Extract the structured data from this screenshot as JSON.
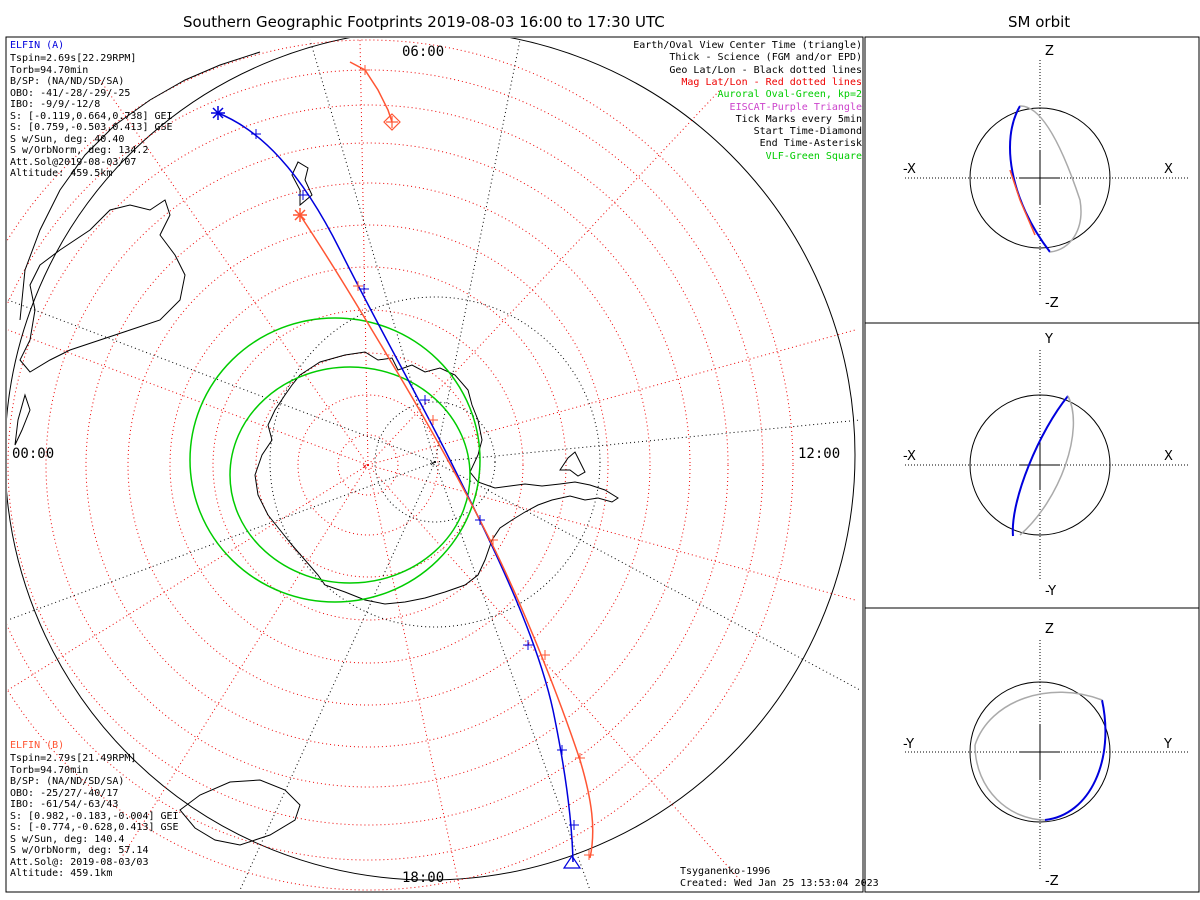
{
  "main_title": "Southern Geographic Footprints 2019-08-03 16:00 to 17:30 UTC",
  "orbit_title": "SM orbit",
  "mlt_labels": {
    "top": "06:00",
    "left": "00:00",
    "right": "12:00",
    "bottom": "18:00"
  },
  "elfin_a": {
    "name": "ELFIN (A)",
    "lines": [
      "Tspin=2.69s[22.29RPM]",
      "Torb=94.70min",
      "B/SP: (NA/ND/SD/SA)",
      "OBO: -41/-28/-29/-25",
      "IBO: -9/9/-12/8",
      "S: [-0.119,0.664,0.738] GEI",
      "S: [0.759,-0.503,0.413] GSE",
      "S w/Sun, deg: 40.40",
      "S w/OrbNorm, deg: 134.2",
      "Att.Sol@2019-08-03/07",
      "Altitude: 459.5km"
    ],
    "color": "#0000dd"
  },
  "elfin_b": {
    "name": "ELFIN (B)",
    "lines": [
      "Tspin=2.79s[21.49RPM]",
      "Torb=94.70min",
      "B/SP: (NA/ND/SD/SA)",
      "OBO: -25/27/-40/17",
      "IBO: -61/54/-63/43",
      "S: [0.982,-0.183,-0.004] GEI",
      "S: [-0.774,-0.628,0.413] GSE",
      "S w/Sun, deg: 140.4",
      "S w/OrbNorm, deg: 57.14",
      "Att.Sol@: 2019-08-03/03",
      "Altitude: 459.1km"
    ],
    "color": "#ff5533"
  },
  "legend": [
    {
      "text": "Earth/Oval View Center Time (triangle)",
      "color": "#000000"
    },
    {
      "text": "Thick - Science (FGM and/or EPD)",
      "color": "#000000"
    },
    {
      "text": "Geo Lat/Lon - Black dotted lines",
      "color": "#000000"
    },
    {
      "text": "Mag Lat/Lon - Red dotted lines",
      "color": "#ee0000"
    },
    {
      "text": "Auroral Oval-Green, kp=2",
      "color": "#00cc00"
    },
    {
      "text": "EISCAT-Purple Triangle",
      "color": "#cc44cc"
    },
    {
      "text": "Tick Marks every 5min",
      "color": "#000000"
    },
    {
      "text": "Start Time-Diamond",
      "color": "#000000"
    },
    {
      "text": "End Time-Asterisk",
      "color": "#000000"
    },
    {
      "text": "VLF-Green Square",
      "color": "#00cc00"
    }
  ],
  "footer": {
    "model": "Tsyganenko-1996",
    "created": "Created: Wed Jan 25 13:53:04 2023"
  },
  "panels": [
    {
      "top": "Z",
      "bottom": "-Z",
      "left": "-X",
      "right": "X"
    },
    {
      "top": "Y",
      "bottom": "-Y",
      "left": "-X",
      "right": "X"
    },
    {
      "top": "Z",
      "bottom": "-Z",
      "left": "-Y",
      "right": "Y"
    }
  ],
  "colors": {
    "elfin_a": "#0000dd",
    "elfin_b": "#ff5533",
    "oval": "#00cc00",
    "mag_grid": "#ee0000",
    "orbit_gray": "#aaaaaa"
  }
}
